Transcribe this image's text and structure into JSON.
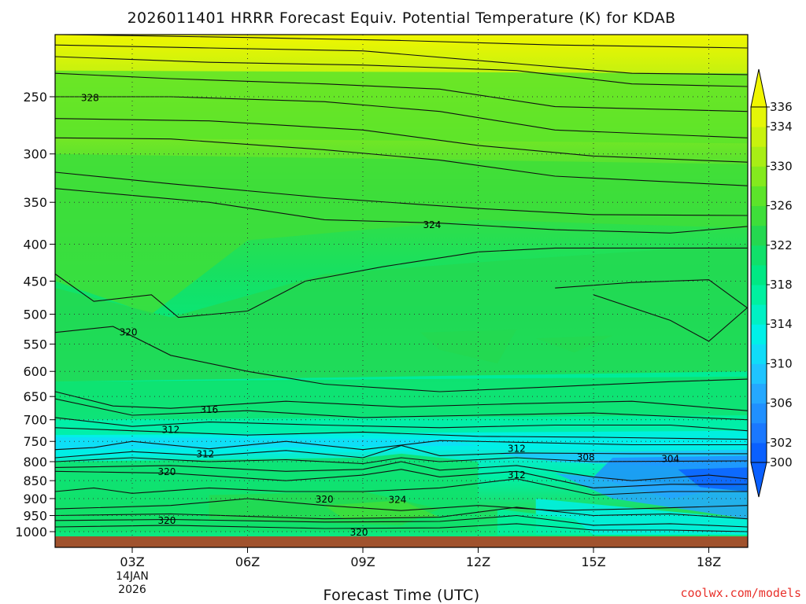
{
  "chart_data": {
    "type": "heatmap",
    "title": "2026011401 HRRR Forecast Equiv. Potential Temperature (K) for KDAB",
    "xlabel": "Forecast Time (UTC)",
    "ylabel": "",
    "x_ticks": [
      {
        "hour": 3,
        "label": "03Z"
      },
      {
        "hour": 6,
        "label": "06Z"
      },
      {
        "hour": 9,
        "label": "09Z"
      },
      {
        "hour": 12,
        "label": "12Z"
      },
      {
        "hour": 15,
        "label": "15Z"
      },
      {
        "hour": 18,
        "label": "18Z"
      }
    ],
    "date_label": [
      "14JAN",
      "2026"
    ],
    "xlim": [
      1,
      19
    ],
    "y_scale": "log-pressure",
    "ylim_hpa": [
      1010,
      200
    ],
    "y_ticks": [
      250,
      300,
      350,
      400,
      450,
      500,
      550,
      600,
      650,
      700,
      750,
      800,
      850,
      900,
      950,
      1000
    ],
    "colorbar": {
      "levels": [
        300,
        302,
        304,
        306,
        308,
        310,
        312,
        314,
        316,
        318,
        320,
        322,
        324,
        326,
        328,
        330,
        332,
        334,
        336
      ],
      "labels": [
        300,
        302,
        306,
        310,
        314,
        318,
        322,
        326,
        330,
        334,
        336
      ],
      "colors": [
        "#0a60ff",
        "#1a78ff",
        "#2090ff",
        "#25a8ff",
        "#1fc4ff",
        "#10dcf8",
        "#00f0e8",
        "#00f0c4",
        "#00f0a0",
        "#00e884",
        "#10e06a",
        "#24d850",
        "#3ede3a",
        "#5ce42a",
        "#84ea1e",
        "#a8ee16",
        "#c8f20e",
        "#e4f608"
      ],
      "extend": "both"
    },
    "contour_labels": [
      {
        "value": "328",
        "hour": 1.9,
        "p": 251
      },
      {
        "value": "324",
        "hour": 10.8,
        "p": 376
      },
      {
        "value": "320",
        "hour": 2.9,
        "p": 530
      },
      {
        "value": "316",
        "hour": 5.0,
        "p": 678
      },
      {
        "value": "312",
        "hour": 4.0,
        "p": 723
      },
      {
        "value": "312",
        "hour": 4.9,
        "p": 781
      },
      {
        "value": "320",
        "hour": 3.9,
        "p": 827
      },
      {
        "value": "320",
        "hour": 8.0,
        "p": 902
      },
      {
        "value": "324",
        "hour": 9.9,
        "p": 903
      },
      {
        "value": "320",
        "hour": 3.9,
        "p": 965
      },
      {
        "value": "320",
        "hour": 8.9,
        "p": 1002
      },
      {
        "value": "312",
        "hour": 13.0,
        "p": 768
      },
      {
        "value": "308",
        "hour": 14.8,
        "p": 789
      },
      {
        "value": "304",
        "hour": 17.0,
        "p": 793
      },
      {
        "value": "312",
        "hour": 13.0,
        "p": 835
      }
    ],
    "grid": true,
    "surface_color": "#a0522d"
  },
  "credit": "coolwx.com/models"
}
